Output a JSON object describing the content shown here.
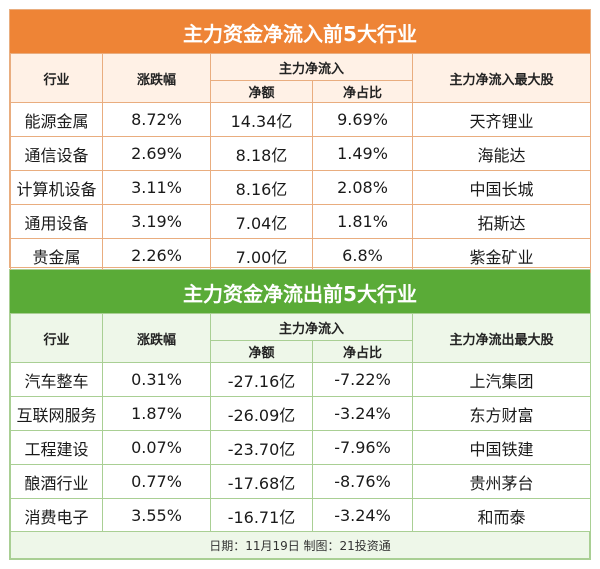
{
  "inflow": {
    "title": "主力资金净流入前5大行业",
    "headers": {
      "industry": "行业",
      "change": "涨跌幅",
      "group": "主力净流入",
      "net": "净额",
      "ratio": "净占比",
      "top_stock": "主力净流入最大股"
    },
    "rows": [
      {
        "industry": "能源金属",
        "change": "8.72%",
        "net": "14.34亿",
        "ratio": "9.69%",
        "top_stock": "天齐锂业"
      },
      {
        "industry": "通信设备",
        "change": "2.69%",
        "net": "8.18亿",
        "ratio": "1.49%",
        "top_stock": "海能达"
      },
      {
        "industry": "计算机设备",
        "change": "3.11%",
        "net": "8.16亿",
        "ratio": "2.08%",
        "top_stock": "中国长城"
      },
      {
        "industry": "通用设备",
        "change": "3.19%",
        "net": "7.04亿",
        "ratio": "1.81%",
        "top_stock": "拓斯达"
      },
      {
        "industry": "贵金属",
        "change": "2.26%",
        "net": "7.00亿",
        "ratio": "6.8%",
        "top_stock": "紫金矿业"
      }
    ],
    "color": "#ee8436"
  },
  "outflow": {
    "title": "主力资金净流出前5大行业",
    "headers": {
      "industry": "行业",
      "change": "涨跌幅",
      "group": "主力净流入",
      "net": "净额",
      "ratio": "净占比",
      "top_stock": "主力净流出最大股"
    },
    "rows": [
      {
        "industry": "汽车整车",
        "change": "0.31%",
        "net": "-27.16亿",
        "ratio": "-7.22%",
        "top_stock": "上汽集团"
      },
      {
        "industry": "互联网服务",
        "change": "1.87%",
        "net": "-26.09亿",
        "ratio": "-3.24%",
        "top_stock": "东方财富"
      },
      {
        "industry": "工程建设",
        "change": "0.07%",
        "net": "-23.70亿",
        "ratio": "-7.96%",
        "top_stock": "中国铁建"
      },
      {
        "industry": "酿酒行业",
        "change": "0.77%",
        "net": "-17.68亿",
        "ratio": "-8.76%",
        "top_stock": "贵州茅台"
      },
      {
        "industry": "消费电子",
        "change": "3.55%",
        "net": "-16.71亿",
        "ratio": "-3.24%",
        "top_stock": "和而泰"
      }
    ],
    "color": "#5aab37"
  },
  "footer": "日期：11月19日 制图：21投资通"
}
